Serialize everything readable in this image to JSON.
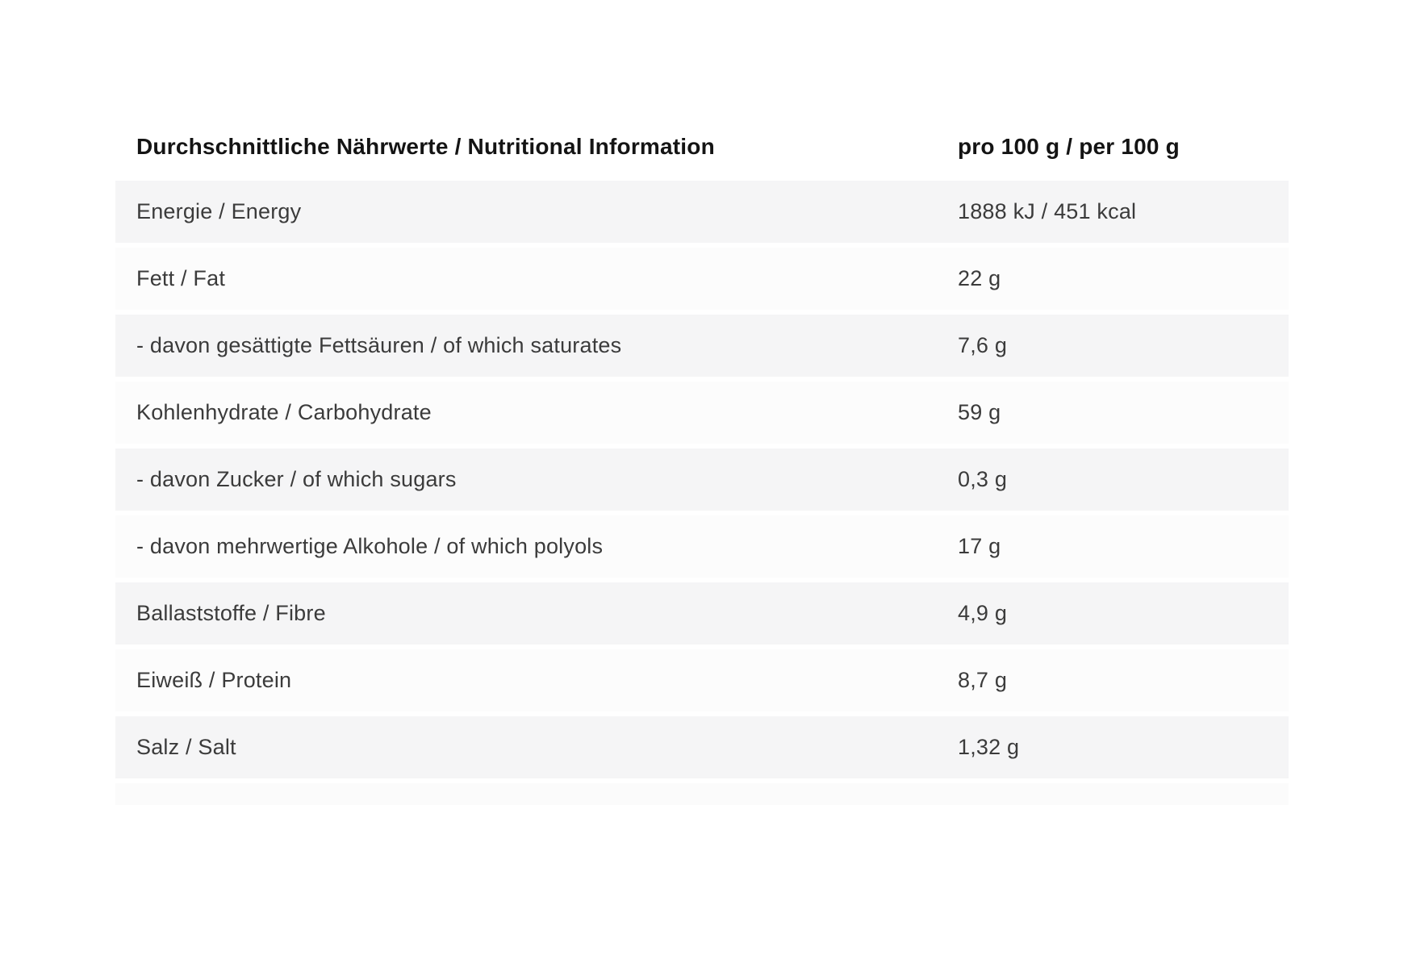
{
  "table": {
    "header": {
      "label": "Durchschnittliche Nährwerte / Nutritional Information",
      "value": "pro 100 g / per 100 g"
    },
    "rows": [
      {
        "label": "Energie / Energy",
        "value": "1888 kJ / 451 kcal"
      },
      {
        "label": "Fett / Fat",
        "value": "22 g"
      },
      {
        "label": "- davon gesättigte Fettsäuren / of which saturates",
        "value": "7,6 g"
      },
      {
        "label": "Kohlenhydrate / Carbohydrate",
        "value": "59 g"
      },
      {
        "label": "- davon Zucker / of which sugars",
        "value": "0,3 g"
      },
      {
        "label": "- davon mehrwertige Alkohole / of which polyols",
        "value": "17 g"
      },
      {
        "label": "Ballaststoffe / Fibre",
        "value": "4,9 g"
      },
      {
        "label": "Eiweiß / Protein",
        "value": "8,7 g"
      },
      {
        "label": "Salz / Salt",
        "value": "1,32 g"
      }
    ],
    "colors": {
      "row_odd": "#f5f5f6",
      "row_even": "#fcfcfc",
      "row_partial": "#fbfbfb",
      "row_text": "#3b3b3b",
      "header_text": "#141414"
    }
  }
}
